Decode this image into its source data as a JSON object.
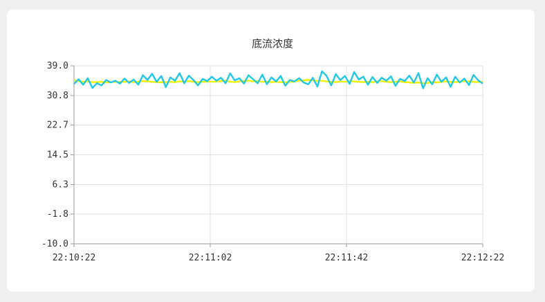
{
  "chart_data": {
    "type": "line",
    "title": "底流浓度",
    "xlabel": "",
    "ylabel": "",
    "ylim": [
      -10.0,
      39.0
    ],
    "yticks": [
      "39.0",
      "30.8",
      "22.7",
      "14.5",
      "6.3",
      "-1.8",
      "-10.0"
    ],
    "ytick_values": [
      39.0,
      30.8,
      22.7,
      14.5,
      6.3,
      -1.8,
      -10.0
    ],
    "xticks": [
      "22:10:22",
      "22:11:02",
      "22:11:42",
      "22:12:22"
    ],
    "x_range_seconds": [
      0,
      120
    ],
    "series": [
      {
        "color": "#f0f000",
        "values": [
          34.9,
          34.8,
          34.6,
          34.7,
          34.5,
          34.5,
          34.6,
          34.4,
          34.5,
          34.6,
          34.5,
          34.6,
          34.7,
          34.5,
          34.6,
          34.8,
          34.7,
          34.6,
          34.5,
          34.4,
          34.5,
          34.6,
          34.5,
          34.7,
          34.6,
          34.8,
          34.6,
          34.5,
          34.6,
          34.7,
          34.6,
          34.7,
          34.8,
          34.9,
          34.6,
          34.5,
          34.7,
          34.8,
          34.9,
          34.7,
          34.8,
          34.6,
          34.7,
          34.5,
          34.6,
          34.5,
          34.4,
          34.6,
          34.7,
          34.9,
          35.0,
          35.1,
          35.0,
          34.8,
          34.9,
          34.7,
          34.6,
          34.5,
          34.7,
          34.6,
          34.8,
          34.7,
          34.6,
          34.5,
          34.6,
          34.5,
          34.7,
          34.8,
          34.6,
          34.5,
          34.6,
          34.7,
          34.5,
          34.4,
          34.3,
          34.4,
          34.2,
          34.3,
          34.5,
          34.4,
          34.6,
          34.7,
          34.6,
          34.5,
          34.6,
          34.8,
          34.7,
          34.6,
          34.5,
          34.6
        ]
      },
      {
        "color": "#1fc8ea",
        "values": [
          34.0,
          35.3,
          33.8,
          35.6,
          32.9,
          34.2,
          33.6,
          35.1,
          34.4,
          34.9,
          34.1,
          35.5,
          34.3,
          35.2,
          33.8,
          36.4,
          35.1,
          36.8,
          34.6,
          36.2,
          33.1,
          35.8,
          34.9,
          37.0,
          34.2,
          36.3,
          35.1,
          33.6,
          35.4,
          34.8,
          36.0,
          34.9,
          35.7,
          34.2,
          36.9,
          35.0,
          35.6,
          34.1,
          36.4,
          35.3,
          34.2,
          36.6,
          33.9,
          35.8,
          34.7,
          36.2,
          33.5,
          35.1,
          34.7,
          35.6,
          34.4,
          33.9,
          35.7,
          33.3,
          37.5,
          36.2,
          33.6,
          36.7,
          35.1,
          36.2,
          34.0,
          37.3,
          35.2,
          36.0,
          33.8,
          35.9,
          34.3,
          35.7,
          34.9,
          36.1,
          33.5,
          35.4,
          34.8,
          36.3,
          34.4,
          37.0,
          32.8,
          35.6,
          33.9,
          36.6,
          34.6,
          35.8,
          33.2,
          36.0,
          34.4,
          35.5,
          33.7,
          36.5,
          35.0,
          34.1
        ]
      }
    ],
    "grid": true,
    "legend": "none"
  }
}
